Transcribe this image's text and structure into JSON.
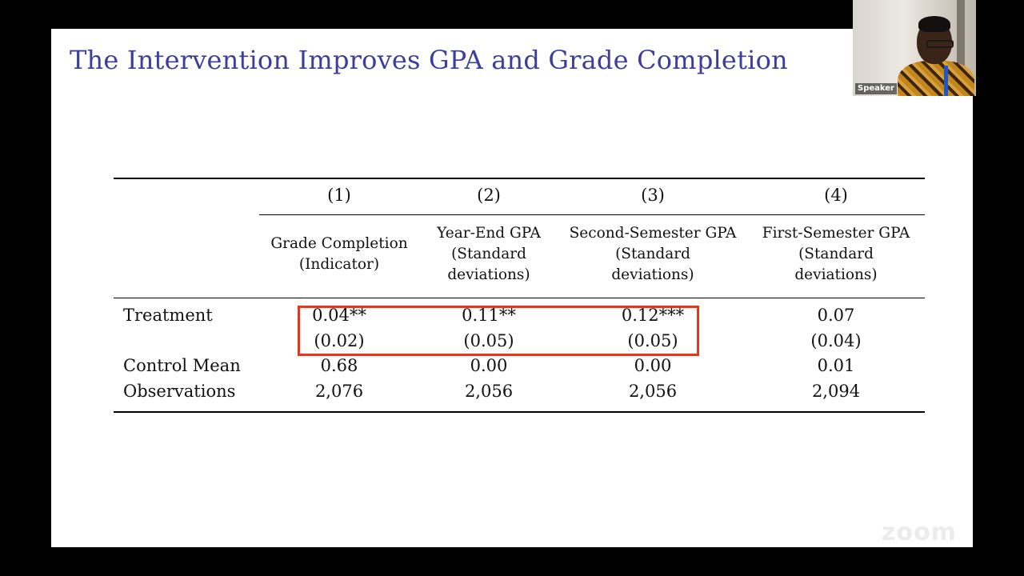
{
  "slide": {
    "title": "The Intervention Improves GPA and Grade Completion"
  },
  "table": {
    "columns": [
      {
        "num": "(1)",
        "label_lines": [
          "Grade Completion",
          "(Indicator)"
        ]
      },
      {
        "num": "(2)",
        "label_lines": [
          "Year-End GPA",
          "(Standard",
          "deviations)"
        ]
      },
      {
        "num": "(3)",
        "label_lines": [
          "Second-Semester GPA",
          "(Standard",
          "deviations)"
        ]
      },
      {
        "num": "(4)",
        "label_lines": [
          "First-Semester GPA",
          "(Standard",
          "deviations)"
        ]
      }
    ],
    "rows": {
      "treatment_label": "Treatment",
      "treatment_coef": [
        "0.04**",
        "0.11**",
        "0.12***",
        "0.07"
      ],
      "treatment_se": [
        "(0.02)",
        "(0.05)",
        "(0.05)",
        "(0.04)"
      ],
      "control_label": "Control Mean",
      "control_mean": [
        "0.68",
        "0.00",
        "0.00",
        "0.01"
      ],
      "obs_label": "Observations",
      "observations": [
        "2,076",
        "2,056",
        "2,056",
        "2,094"
      ]
    },
    "highlight_color": "#e8361c"
  },
  "webcam": {
    "name": "Speaker"
  },
  "colors": {
    "title": "#3d3d9a",
    "background": "#000000",
    "slide": "#ffffff"
  }
}
